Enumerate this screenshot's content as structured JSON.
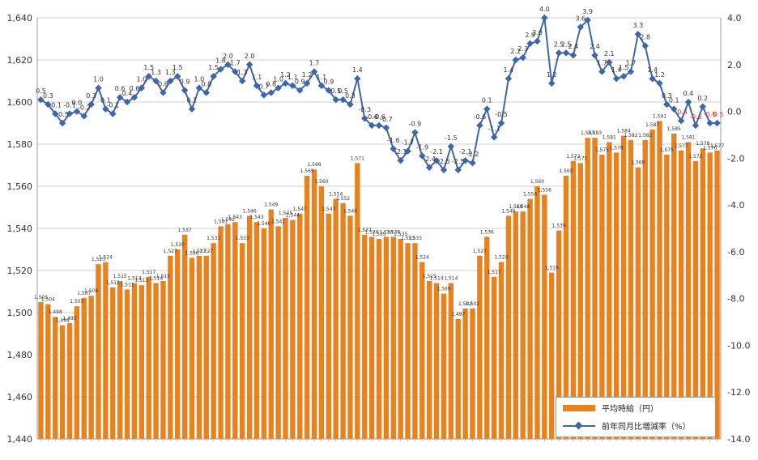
{
  "chart_data": {
    "type": "bar+line",
    "left_axis": {
      "min": 1440,
      "max": 1640,
      "step": 20,
      "ticks": [
        "1,440",
        "1,460",
        "1,480",
        "1,500",
        "1,520",
        "1,540",
        "1,560",
        "1,580",
        "1,600",
        "1,620",
        "1,640"
      ]
    },
    "right_axis": {
      "min": -14,
      "max": 4,
      "step": 2,
      "ticks": [
        "-14.0",
        "-12.0",
        "-10.0",
        "-8.0",
        "-6.0",
        "-4.0",
        "-2.0",
        "0.0",
        "2.0",
        "4.0"
      ]
    },
    "x_labels": [],
    "legend": {
      "bar_label": "平均時給（円）",
      "line_label": "前年同月比増減率（%）",
      "placement": "bottom-right"
    },
    "colors": {
      "bar": "#e7821f",
      "line": "#3f67a8",
      "grid": "#cfcfcf",
      "axis_text": "#333333",
      "negative_label": "#e03030"
    },
    "series": [
      {
        "name": "平均時給（円）",
        "type": "bar",
        "axis": "left",
        "values": [
          1505,
          1504,
          1498,
          1494,
          1495,
          1503,
          1507,
          1508,
          1523,
          1524,
          1512,
          1515,
          1511,
          1514,
          1513,
          1517,
          1514,
          1515,
          1527,
          1530,
          1537,
          1526,
          1527,
          1527,
          1533,
          1541,
          1542,
          1543,
          1533,
          1546,
          1543,
          1540,
          1549,
          1541,
          1545,
          1544,
          1547,
          1565,
          1568,
          1560,
          1547,
          1554,
          1552,
          1546,
          1571,
          1537,
          1536,
          1535,
          1536,
          1536,
          1535,
          1533,
          1533,
          1524,
          1515,
          1514,
          1509,
          1514,
          1497,
          1502,
          1502,
          1527,
          1536,
          1517,
          1524,
          1546,
          1548,
          1548,
          1554,
          1560,
          1556,
          1519,
          1539,
          1565,
          1572,
          1571,
          1583,
          1583,
          1575,
          1581,
          1576,
          1584,
          1582,
          1569,
          1582,
          1587,
          1591,
          1575,
          1585,
          1577,
          1581,
          1572,
          1578,
          1576,
          1577
        ],
        "labels": [
          "1,505",
          "1,504",
          "1,498",
          "1,494",
          "1,495",
          "1,503",
          "1,507",
          "1,508",
          "1,523",
          "1,524",
          "1,512",
          "1,515",
          "1,511",
          "1,514",
          "1,513",
          "1,517",
          "1,514",
          "1,515",
          "1,527",
          "1,530",
          "1,537",
          "1,526",
          "1,527",
          "1,527",
          "1,533",
          "1,541",
          "1,542",
          "1,543",
          "1,533",
          "1,546",
          "1,543",
          "1,540",
          "1,549",
          "1,541",
          "1,545",
          "1,544",
          "1,547",
          "1,565",
          "1,568",
          "1,560",
          "1,547",
          "1,554",
          "1,552",
          "1,546",
          "1,571",
          "1,537",
          "1,536",
          "1,535",
          "1,536",
          "1,536",
          "1,535",
          "1,533",
          "1,533",
          "1,524",
          "1,515",
          "1,514",
          "1,509",
          "1,514",
          "1,497",
          "1,502",
          "1,502",
          "1,527",
          "1,536",
          "1,517",
          "1,524",
          "1,546",
          "1,548",
          "1,548",
          "1,554",
          "1,560",
          "1,556",
          "1,519",
          "1,539",
          "1,565",
          "1,572",
          "1,571",
          "1,583",
          "1,583",
          "1,575",
          "1,581",
          "1,576",
          "1,584",
          "1,582",
          "1,569",
          "1,582",
          "1,587",
          "1,591",
          "1,575",
          "1,585",
          "1,577",
          "1,581",
          "1,572",
          "1,578",
          "1,576",
          "1,577"
        ]
      },
      {
        "name": "前年同月比増減率（%）",
        "type": "line",
        "axis": "right",
        "values": [
          0.5,
          0.3,
          -0.1,
          -0.5,
          -0.1,
          0.0,
          -0.2,
          0.3,
          1.0,
          0.1,
          -0.1,
          0.6,
          0.4,
          0.6,
          1.0,
          1.5,
          1.3,
          0.8,
          1.3,
          1.5,
          0.9,
          0.1,
          1.0,
          0.8,
          1.5,
          1.8,
          2.0,
          1.7,
          1.3,
          2.0,
          1.1,
          0.7,
          0.8,
          1.0,
          1.2,
          1.1,
          0.9,
          1.2,
          1.7,
          1.1,
          0.9,
          0.5,
          0.5,
          0.3,
          1.4,
          -0.3,
          -0.6,
          -0.6,
          -0.7,
          -1.6,
          -2.1,
          -1.7,
          -0.9,
          -1.9,
          -2.4,
          -2.1,
          -2.5,
          -1.5,
          -2.5,
          -2.1,
          -2.2,
          -0.6,
          0.1,
          -1.1,
          -0.5,
          1.4,
          2.2,
          2.3,
          2.9,
          3.0,
          4.0,
          1.2,
          2.5,
          2.5,
          2.4,
          3.6,
          3.9,
          2.4,
          1.7,
          2.1,
          1.4,
          1.5,
          1.7,
          3.3,
          2.8,
          1.4,
          1.2,
          0.3,
          0.1,
          -0.4,
          0.4,
          -0.6,
          0.2,
          -0.5,
          -0.5
        ],
        "labels": [
          "0.5",
          "0.3",
          "-0.1",
          "-0.5",
          "-0.1",
          "0.0",
          "-0.2",
          "0.3",
          "1.0",
          "0.1",
          "-0.1",
          "0.6",
          "0.4",
          "0.6",
          "1.0",
          "1.5",
          "1.3",
          "0.8",
          "1.3",
          "1.5",
          "0.9",
          "0.1",
          "1.0",
          "0.8",
          "1.5",
          "1.8",
          "2.0",
          "1.7",
          "1.3",
          "2.0",
          "1.1",
          "0.7",
          "0.8",
          "1.0",
          "1.2",
          "1.1",
          "0.9",
          "1.2",
          "1.7",
          "1.1",
          "0.9",
          "0.5",
          "0.5",
          "0.3",
          "1.4",
          "-0.3",
          "-0.6",
          "-0.6",
          "-0.7",
          "-1.6",
          "-2.1",
          "-1.7",
          "-0.9",
          "-1.9",
          "-2.4",
          "-2.1",
          "-2.5",
          "-1.5",
          "-2.5",
          "-2.1",
          "-2.2",
          "-0.6",
          "0.1",
          "-1.1",
          "-0.5",
          "1.4",
          "2.2",
          "2.3",
          "2.9",
          "3.0",
          "4.0",
          "1.2",
          "2.5",
          "2.5",
          "2.4",
          "3.6",
          "3.9",
          "2.4",
          "1.7",
          "2.1",
          "1.4",
          "1.5",
          "1.7",
          "3.3",
          "2.8",
          "1.4",
          "1.2",
          "0.3",
          "0.1",
          "-0.4",
          "0.4",
          "-0.6",
          "0.2",
          "-0.5",
          "-0.5"
        ]
      }
    ]
  }
}
